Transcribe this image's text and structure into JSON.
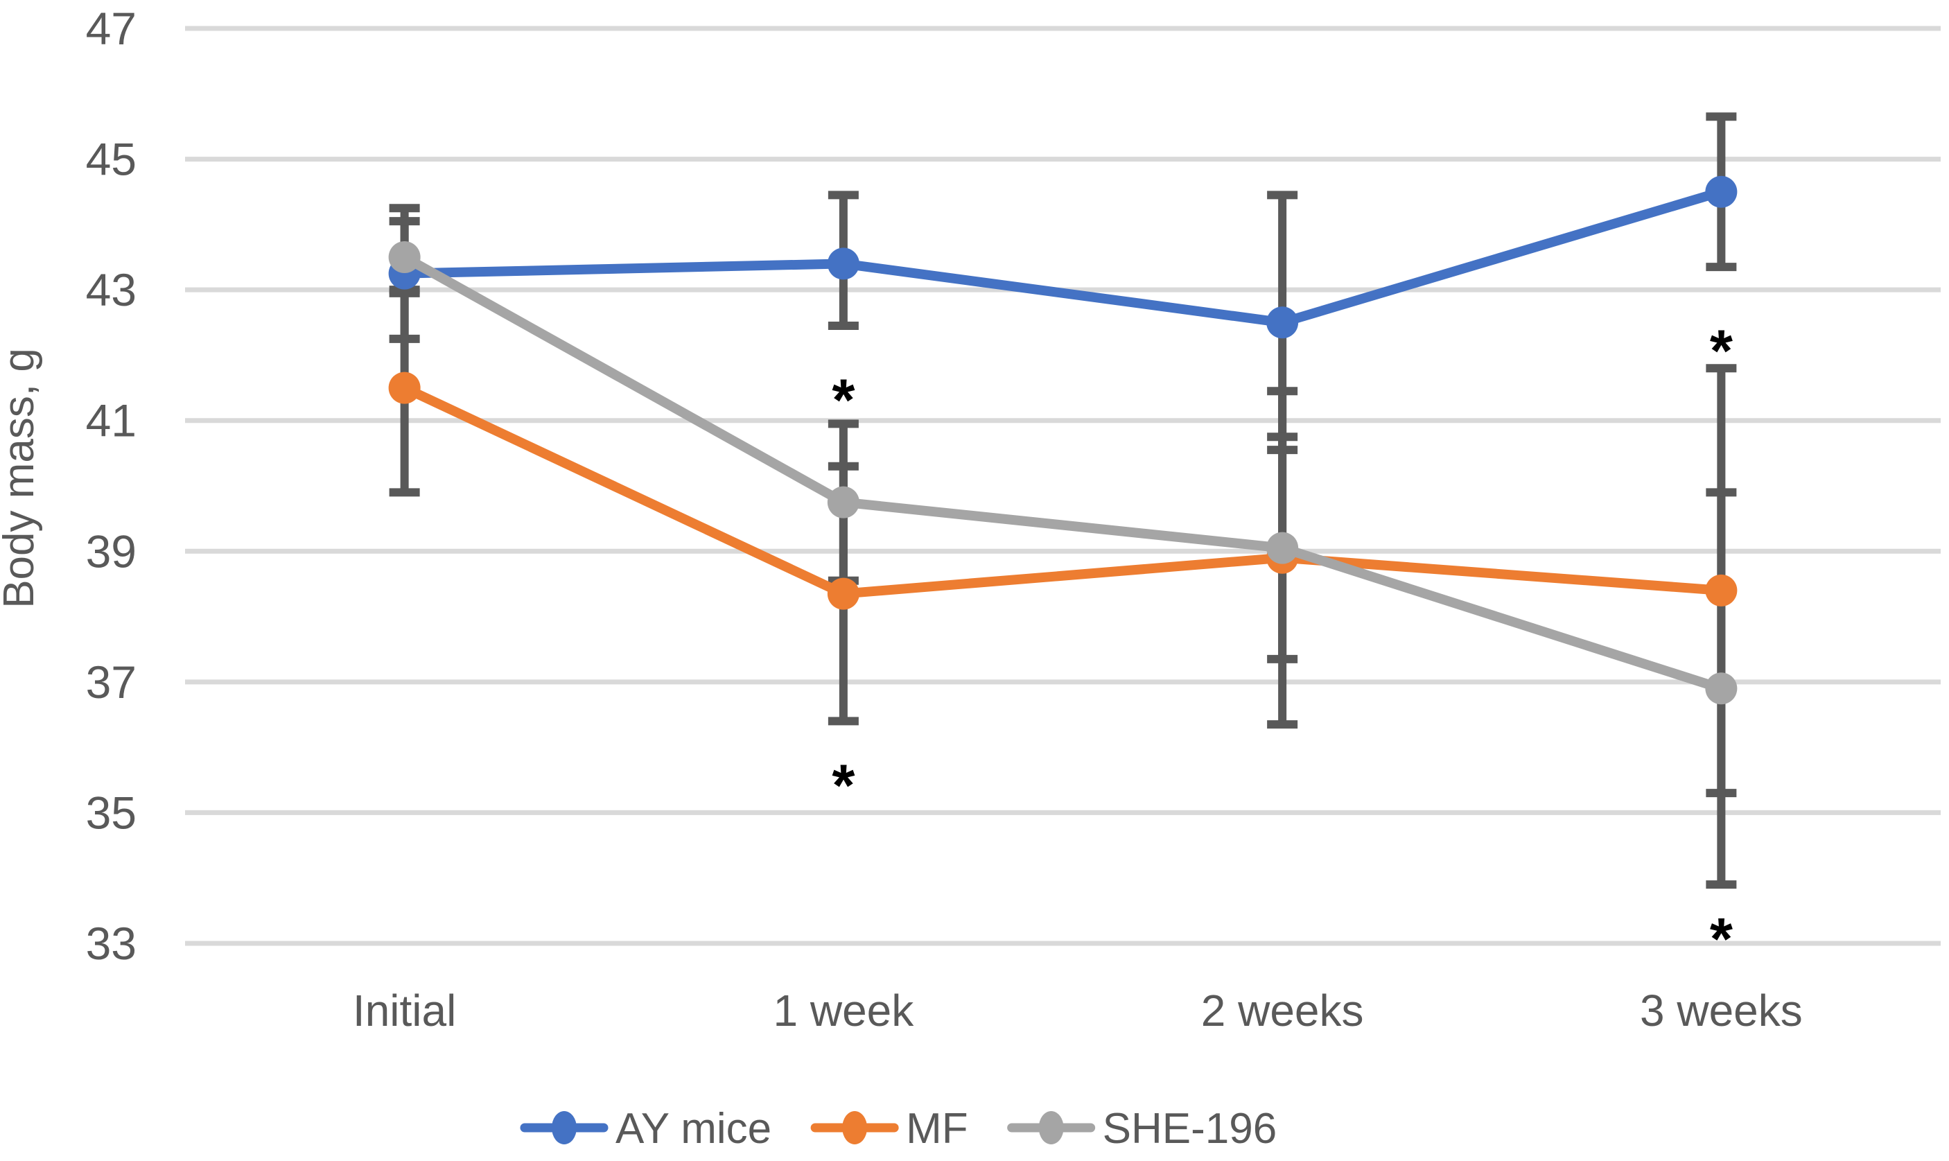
{
  "figure": {
    "background_color": "#ffffff",
    "text_color": "#595959",
    "gridline_color": "#d9d9d9",
    "error_bar_color": "#595959",
    "annotation_color": "#000000"
  },
  "chart_data": {
    "type": "line",
    "title": "",
    "xlabel": "",
    "ylabel": "Body mass, g",
    "categories": [
      "Initial",
      "1 week",
      "2 weeks",
      "3 weeks"
    ],
    "y_axis": {
      "min": 33,
      "max": 47,
      "step": 2,
      "tick_labels": [
        "47",
        "45",
        "43",
        "41",
        "39",
        "37",
        "35",
        "33"
      ]
    },
    "grid": true,
    "legend_position": "bottom",
    "series": [
      {
        "name": "AY mice",
        "color": "#4472C4",
        "values": [
          43.25,
          43.4,
          42.5,
          44.5
        ],
        "err_up": [
          1.0,
          1.05,
          1.95,
          1.15
        ],
        "err_down": [
          1.0,
          0.95,
          1.95,
          1.15
        ]
      },
      {
        "name": "MF",
        "color": "#ED7D31",
        "values": [
          41.5,
          38.35,
          38.9,
          38.4
        ],
        "err_up": [
          1.5,
          1.95,
          2.55,
          3.4
        ],
        "err_down": [
          1.6,
          1.95,
          2.55,
          3.1
        ]
      },
      {
        "name": "SHE-196",
        "color": "#A5A5A5",
        "values": [
          43.5,
          39.75,
          39.05,
          36.9
        ],
        "err_up": [
          0.55,
          1.2,
          1.7,
          3.0
        ],
        "err_down": [
          0.55,
          1.2,
          1.7,
          3.0
        ]
      }
    ],
    "annotations": [
      {
        "symbol": "*",
        "category": "1 week",
        "category_index": 1,
        "value": 41.45
      },
      {
        "symbol": "*",
        "category": "1 week",
        "category_index": 1,
        "value": 35.55
      },
      {
        "symbol": "*",
        "category": "3 weeks",
        "category_index": 3,
        "value": 42.2
      },
      {
        "symbol": "*",
        "category": "3 weeks",
        "category_index": 3,
        "value": 33.2
      }
    ]
  }
}
